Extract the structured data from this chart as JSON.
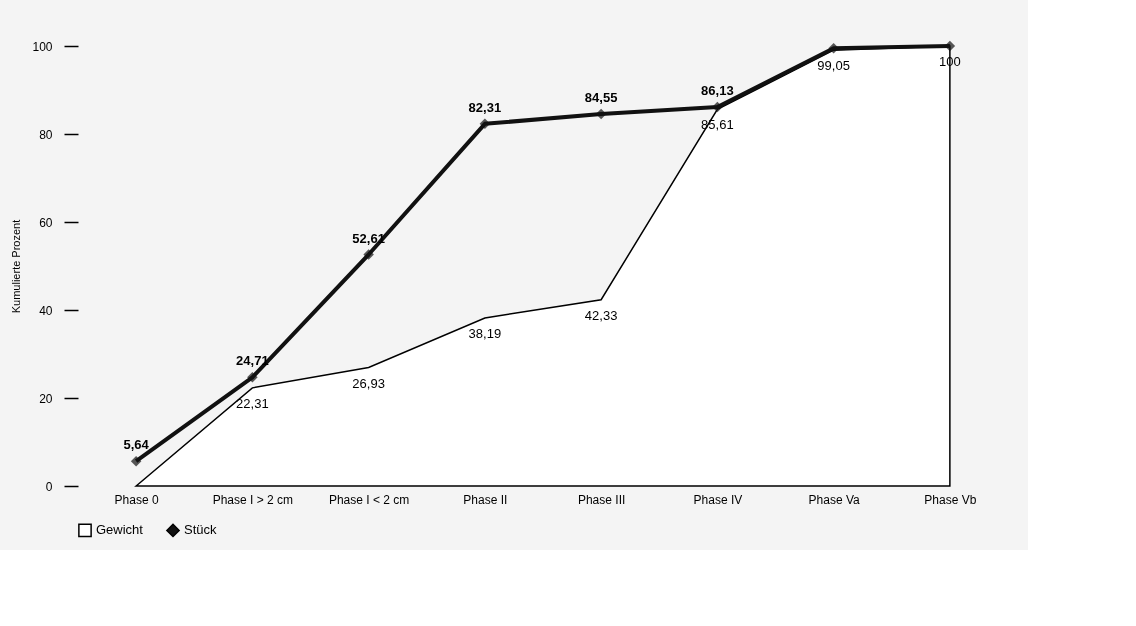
{
  "chart_data": {
    "type": "line",
    "ylabel": "Kumulierte Prozent",
    "categories": [
      "Phase 0",
      "Phase I > 2 cm",
      "Phase I < 2 cm",
      "Phase II",
      "Phase III",
      "Phase IV",
      "Phase Va",
      "Phase Vb"
    ],
    "series": [
      {
        "name": "Gewicht",
        "type": "area",
        "color": "#ffffff",
        "values": [
          0,
          22.31,
          26.93,
          38.19,
          42.33,
          85.61,
          99.05,
          100
        ],
        "value_labels": [
          null,
          "22,31",
          "26,93",
          "38,19",
          "42,33",
          "85,61",
          "99,05",
          "100"
        ]
      },
      {
        "name": "Stück",
        "color": "#111111",
        "marker": "diamond",
        "values": [
          5.64,
          24.71,
          52.61,
          82.31,
          84.55,
          86.13,
          99.5,
          100
        ],
        "value_labels": [
          "5,64",
          "24,71",
          "52,61",
          "82,31",
          "84,55",
          "86,13",
          null,
          null
        ]
      }
    ],
    "ylim": [
      0,
      100
    ],
    "yticks": [
      0,
      20,
      40,
      60,
      80,
      100
    ],
    "grid": false,
    "legend": "bottom"
  }
}
